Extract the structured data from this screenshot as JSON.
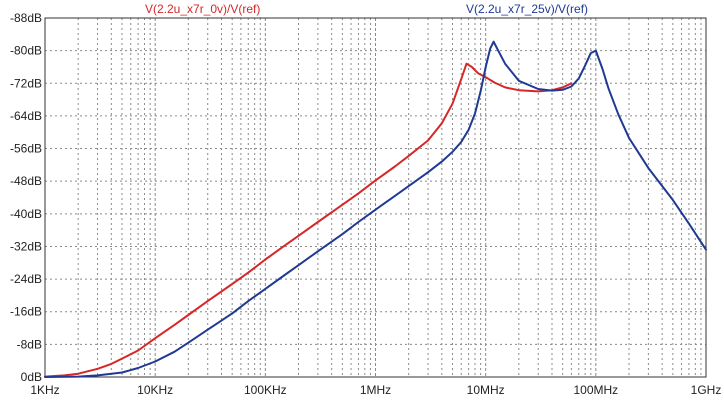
{
  "chart_data": {
    "type": "line",
    "x_scale": "log",
    "grid": true,
    "xlim": [
      1000,
      1000000000
    ],
    "ylim": [
      -88,
      0
    ],
    "x_ticks": [
      {
        "value": 1000,
        "label": "1KHz"
      },
      {
        "value": 10000,
        "label": "10KHz"
      },
      {
        "value": 100000,
        "label": "100KHz"
      },
      {
        "value": 1000000,
        "label": "1MHz"
      },
      {
        "value": 10000000,
        "label": "10MHz"
      },
      {
        "value": 100000000,
        "label": "100MHz"
      },
      {
        "value": 1000000000,
        "label": "1GHz"
      }
    ],
    "y_ticks": [
      {
        "value": 0,
        "label": "0dB"
      },
      {
        "value": -8,
        "label": "-8dB"
      },
      {
        "value": -16,
        "label": "-16dB"
      },
      {
        "value": -24,
        "label": "-24dB"
      },
      {
        "value": -32,
        "label": "-32dB"
      },
      {
        "value": -40,
        "label": "-40dB"
      },
      {
        "value": -48,
        "label": "-48dB"
      },
      {
        "value": -56,
        "label": "-56dB"
      },
      {
        "value": -64,
        "label": "-64dB"
      },
      {
        "value": -72,
        "label": "-72dB"
      },
      {
        "value": -80,
        "label": "-80dB"
      },
      {
        "value": -88,
        "label": "-88dB"
      }
    ],
    "series": [
      {
        "name": "V(2.2u_x7r_0v)/V(ref)",
        "color": "#d62728",
        "points": [
          [
            1000,
            -0.1
          ],
          [
            1500,
            -0.4
          ],
          [
            2000,
            -0.8
          ],
          [
            3000,
            -2.0
          ],
          [
            4000,
            -3.2
          ],
          [
            5000,
            -4.5
          ],
          [
            7000,
            -6.5
          ],
          [
            10000,
            -9.5
          ],
          [
            15000,
            -12.8
          ],
          [
            20000,
            -15.2
          ],
          [
            30000,
            -18.6
          ],
          [
            50000,
            -22.8
          ],
          [
            70000,
            -25.6
          ],
          [
            100000,
            -28.8
          ],
          [
            150000,
            -32.2
          ],
          [
            200000,
            -34.6
          ],
          [
            300000,
            -38.0
          ],
          [
            500000,
            -42.2
          ],
          [
            700000,
            -45.0
          ],
          [
            1000000,
            -48.2
          ],
          [
            1500000,
            -51.6
          ],
          [
            2000000,
            -54.2
          ],
          [
            3000000,
            -58.0
          ],
          [
            4000000,
            -62.2
          ],
          [
            5000000,
            -67.0
          ],
          [
            6000000,
            -73.0
          ],
          [
            6700000,
            -76.8
          ],
          [
            7500000,
            -76.0
          ],
          [
            8500000,
            -74.5
          ],
          [
            10000000,
            -73.5
          ],
          [
            12000000,
            -72.2
          ],
          [
            15000000,
            -71.0
          ],
          [
            20000000,
            -70.3
          ],
          [
            30000000,
            -70.0
          ],
          [
            40000000,
            -70.3
          ],
          [
            50000000,
            -71.0
          ],
          [
            60000000,
            -72.0
          ]
        ]
      },
      {
        "name": "V(2.2u_x7r_25v)/V(ref)",
        "color": "#1f3a93",
        "points": [
          [
            1000,
            0.0
          ],
          [
            2000,
            -0.1
          ],
          [
            3000,
            -0.4
          ],
          [
            5000,
            -1.1
          ],
          [
            7000,
            -2.2
          ],
          [
            10000,
            -3.8
          ],
          [
            15000,
            -6.2
          ],
          [
            20000,
            -8.4
          ],
          [
            30000,
            -11.6
          ],
          [
            50000,
            -15.6
          ],
          [
            70000,
            -18.6
          ],
          [
            100000,
            -21.6
          ],
          [
            150000,
            -25.0
          ],
          [
            200000,
            -27.4
          ],
          [
            300000,
            -30.8
          ],
          [
            500000,
            -35.0
          ],
          [
            700000,
            -38.0
          ],
          [
            1000000,
            -41.0
          ],
          [
            1500000,
            -44.4
          ],
          [
            2000000,
            -46.8
          ],
          [
            3000000,
            -50.2
          ],
          [
            4000000,
            -52.8
          ],
          [
            5000000,
            -55.2
          ],
          [
            6000000,
            -57.6
          ],
          [
            7000000,
            -60.6
          ],
          [
            8000000,
            -64.6
          ],
          [
            9000000,
            -70.0
          ],
          [
            10000000,
            -76.0
          ],
          [
            11000000,
            -80.5
          ],
          [
            11800000,
            -82.2
          ],
          [
            13000000,
            -80.0
          ],
          [
            15000000,
            -76.8
          ],
          [
            20000000,
            -72.6
          ],
          [
            30000000,
            -70.6
          ],
          [
            40000000,
            -70.2
          ],
          [
            50000000,
            -70.4
          ],
          [
            60000000,
            -71.2
          ],
          [
            70000000,
            -73.2
          ],
          [
            80000000,
            -76.4
          ],
          [
            90000000,
            -79.4
          ],
          [
            100000000,
            -80.0
          ],
          [
            115000000,
            -75.5
          ],
          [
            130000000,
            -70.8
          ],
          [
            160000000,
            -64.4
          ],
          [
            200000000,
            -58.6
          ],
          [
            300000000,
            -51.2
          ],
          [
            500000000,
            -43.4
          ],
          [
            700000000,
            -37.6
          ],
          [
            1000000000,
            -31.2
          ]
        ]
      }
    ]
  }
}
